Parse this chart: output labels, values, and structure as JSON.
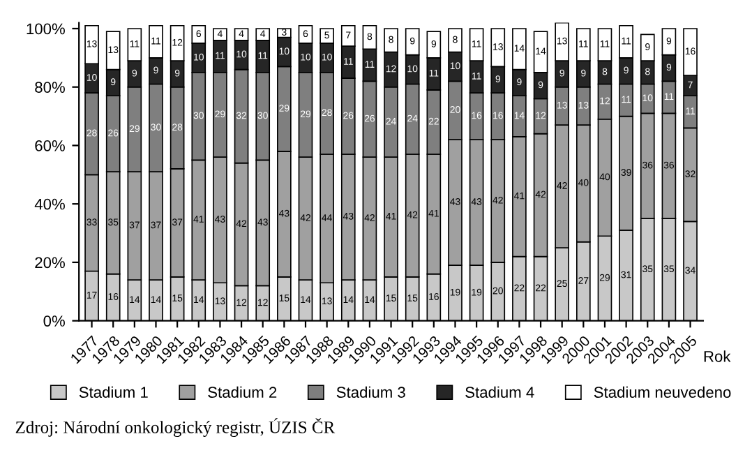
{
  "chart_data": {
    "type": "bar",
    "stacked": true,
    "data_labels": true,
    "xlabel": "Rok",
    "legend": "bottom",
    "grid": false,
    "categories": [
      "1977",
      "1978",
      "1979",
      "1980",
      "1981",
      "1982",
      "1983",
      "1984",
      "1985",
      "1986",
      "1987",
      "1988",
      "1989",
      "1990",
      "1991",
      "1992",
      "1993",
      "1994",
      "1995",
      "1996",
      "1997",
      "1998",
      "1999",
      "2000",
      "2001",
      "2002",
      "2003",
      "2004",
      "2005"
    ],
    "ylim": [
      0,
      102
    ],
    "yticks": [
      {
        "value": 0,
        "label": "0%"
      },
      {
        "value": 20,
        "label": "20%"
      },
      {
        "value": 40,
        "label": "40%"
      },
      {
        "value": 60,
        "label": "60%"
      },
      {
        "value": 80,
        "label": "80%"
      },
      {
        "value": 100,
        "label": "100%"
      }
    ],
    "series": [
      {
        "name": "Stadium 1",
        "color": "#c8c8c8",
        "values": [
          17,
          16,
          14,
          14,
          15,
          14,
          13,
          12,
          12,
          15,
          14,
          13,
          14,
          14,
          15,
          15,
          16,
          19,
          19,
          20,
          22,
          22,
          25,
          27,
          29,
          31,
          35,
          35,
          34
        ]
      },
      {
        "name": "Stadium 2",
        "color": "#a0a0a0",
        "values": [
          33,
          35,
          37,
          37,
          37,
          41,
          43,
          42,
          43,
          43,
          42,
          44,
          43,
          42,
          41,
          42,
          41,
          43,
          43,
          42,
          41,
          42,
          42,
          40,
          40,
          39,
          36,
          36,
          32
        ]
      },
      {
        "name": "Stadium 3",
        "color": "#7f7f7f",
        "values": [
          28,
          26,
          29,
          30,
          28,
          30,
          29,
          32,
          30,
          29,
          29,
          28,
          26,
          26,
          24,
          24,
          22,
          20,
          16,
          16,
          14,
          12,
          13,
          13,
          12,
          11,
          10,
          11,
          11
        ]
      },
      {
        "name": "Stadium 4",
        "color": "#262626",
        "values": [
          10,
          9,
          9,
          9,
          9,
          10,
          11,
          10,
          11,
          10,
          10,
          10,
          11,
          11,
          12,
          10,
          11,
          10,
          11,
          9,
          9,
          9,
          9,
          9,
          8,
          9,
          8,
          9,
          7
        ]
      },
      {
        "name": "Stadium neuvedeno",
        "color": "#ffffff",
        "values": [
          13,
          13,
          11,
          11,
          12,
          6,
          4,
          4,
          4,
          3,
          6,
          5,
          7,
          8,
          8,
          9,
          9,
          8,
          11,
          13,
          14,
          14,
          13,
          11,
          11,
          11,
          9,
          9,
          16
        ]
      }
    ],
    "annotations": [
      "Zdroj: Národní onkologický registr, ÚZIS ČR"
    ]
  }
}
